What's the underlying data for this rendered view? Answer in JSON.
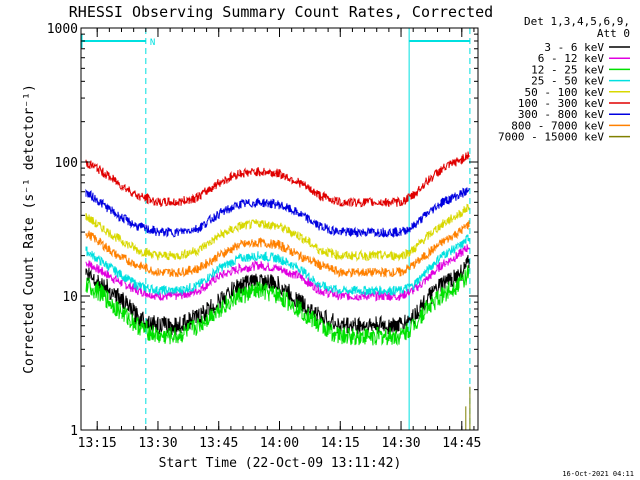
{
  "chart_data": {
    "type": "line",
    "title": "RHESSI Observing Summary Count Rates, Corrected",
    "xlabel": "Start Time (22-Oct-09 13:11:42)",
    "ylabel": "Corrected Count Rate (s⁻¹ detector⁻¹)",
    "yscale": "log",
    "ylim": [
      1,
      1000
    ],
    "xlim_minutes_after_1311": [
      0,
      98
    ],
    "x_ticks": [
      "13:15",
      "13:30",
      "13:45",
      "14:00",
      "14:15",
      "14:30",
      "14:45"
    ],
    "y_ticks": [
      "1",
      "10",
      "100",
      "1000"
    ],
    "legend": {
      "title_lines": [
        "Det 1,3,4,5,6,9,",
        "Att 0"
      ],
      "position": "top-right"
    },
    "markers": {
      "night_intervals_hhmm": [
        [
          "13:11",
          "13:27"
        ],
        [
          "14:32",
          "14:47"
        ]
      ],
      "label": "N"
    },
    "series": [
      {
        "name": "3 - 6 keV",
        "color": "#000000",
        "x": [
          "13:12",
          "13:15",
          "13:20",
          "13:25",
          "13:30",
          "13:35",
          "13:40",
          "13:45",
          "13:50",
          "13:55",
          "14:00",
          "14:05",
          "14:10",
          "14:15",
          "14:20",
          "14:25",
          "14:30",
          "14:33",
          "14:36",
          "14:40",
          "14:45",
          "14:47"
        ],
        "y": [
          15,
          13,
          10,
          7,
          6,
          6,
          7,
          9,
          12,
          13,
          12,
          9,
          7,
          6,
          6,
          6,
          6,
          7,
          9,
          12,
          15,
          18
        ]
      },
      {
        "name": "6 - 12 keV",
        "color": "#e000e0",
        "x": [
          "13:12",
          "13:15",
          "13:20",
          "13:25",
          "13:30",
          "13:35",
          "13:40",
          "13:45",
          "13:50",
          "13:55",
          "14:00",
          "14:05",
          "14:10",
          "14:15",
          "14:20",
          "14:25",
          "14:30",
          "14:33",
          "14:36",
          "14:40",
          "14:45",
          "14:47"
        ],
        "y": [
          18,
          16,
          13,
          11,
          10,
          10,
          11,
          14,
          16,
          17,
          16,
          14,
          11,
          10,
          10,
          10,
          10,
          11,
          13,
          17,
          21,
          24
        ]
      },
      {
        "name": "12 - 25 keV",
        "color": "#00e000",
        "x": [
          "13:12",
          "13:15",
          "13:20",
          "13:25",
          "13:30",
          "13:35",
          "13:40",
          "13:45",
          "13:50",
          "13:55",
          "14:00",
          "14:05",
          "14:10",
          "14:15",
          "14:20",
          "14:25",
          "14:30",
          "14:33",
          "14:36",
          "14:40",
          "14:45",
          "14:47"
        ],
        "y": [
          12,
          11,
          8,
          6,
          5,
          5,
          6,
          8,
          10,
          11,
          10,
          8,
          6,
          5,
          5,
          5,
          5,
          6,
          8,
          10,
          13,
          15
        ]
      },
      {
        "name": "25 - 50 keV",
        "color": "#00e0e0",
        "x": [
          "13:12",
          "13:15",
          "13:20",
          "13:25",
          "13:30",
          "13:35",
          "13:40",
          "13:45",
          "13:50",
          "13:55",
          "14:00",
          "14:05",
          "14:10",
          "14:15",
          "14:20",
          "14:25",
          "14:30",
          "14:33",
          "14:36",
          "14:40",
          "14:45",
          "14:47"
        ],
        "y": [
          22,
          19,
          15,
          12,
          11,
          11,
          12,
          16,
          19,
          20,
          19,
          16,
          12,
          11,
          11,
          11,
          11,
          12,
          15,
          20,
          24,
          28
        ]
      },
      {
        "name": "50 - 100 keV",
        "color": "#d8d800",
        "x": [
          "13:12",
          "13:15",
          "13:20",
          "13:25",
          "13:30",
          "13:35",
          "13:40",
          "13:45",
          "13:50",
          "13:55",
          "14:00",
          "14:05",
          "14:10",
          "14:15",
          "14:20",
          "14:25",
          "14:30",
          "14:33",
          "14:36",
          "14:40",
          "14:45",
          "14:47"
        ],
        "y": [
          40,
          34,
          27,
          22,
          20,
          20,
          22,
          28,
          33,
          35,
          33,
          28,
          22,
          20,
          20,
          20,
          20,
          22,
          27,
          34,
          42,
          47
        ]
      },
      {
        "name": "100 - 300 keV",
        "color": "#e00000",
        "x": [
          "13:12",
          "13:15",
          "13:20",
          "13:25",
          "13:30",
          "13:35",
          "13:40",
          "13:45",
          "13:50",
          "13:55",
          "14:00",
          "14:05",
          "14:10",
          "14:15",
          "14:20",
          "14:25",
          "14:30",
          "14:33",
          "14:36",
          "14:40",
          "14:45",
          "14:47"
        ],
        "y": [
          100,
          90,
          70,
          56,
          50,
          50,
          55,
          70,
          82,
          85,
          82,
          70,
          56,
          50,
          50,
          50,
          50,
          56,
          70,
          88,
          105,
          115
        ]
      },
      {
        "name": "300 - 800 keV",
        "color": "#0000e0",
        "x": [
          "13:12",
          "13:15",
          "13:20",
          "13:25",
          "13:30",
          "13:35",
          "13:40",
          "13:45",
          "13:50",
          "13:55",
          "14:00",
          "14:05",
          "14:10",
          "14:15",
          "14:20",
          "14:25",
          "14:30",
          "14:33",
          "14:36",
          "14:40",
          "14:45",
          "14:47"
        ],
        "y": [
          60,
          52,
          40,
          33,
          30,
          30,
          32,
          41,
          48,
          50,
          48,
          41,
          33,
          30,
          30,
          30,
          30,
          33,
          40,
          50,
          58,
          62
        ]
      },
      {
        "name": "800 - 7000 keV",
        "color": "#ff8000",
        "x": [
          "13:12",
          "13:15",
          "13:20",
          "13:25",
          "13:30",
          "13:35",
          "13:40",
          "13:45",
          "13:50",
          "13:55",
          "14:00",
          "14:05",
          "14:10",
          "14:15",
          "14:20",
          "14:25",
          "14:30",
          "14:33",
          "14:36",
          "14:40",
          "14:45",
          "14:47"
        ],
        "y": [
          30,
          26,
          20,
          17,
          15,
          15,
          16,
          20,
          24,
          25,
          24,
          20,
          17,
          15,
          15,
          15,
          15,
          17,
          20,
          25,
          31,
          35
        ]
      },
      {
        "name": "7000 - 15000 keV",
        "color": "#808000",
        "x": [
          "14:46",
          "14:47"
        ],
        "y": [
          1.5,
          2.1
        ]
      }
    ]
  },
  "timestamp": "16-Oct-2021 04:11"
}
